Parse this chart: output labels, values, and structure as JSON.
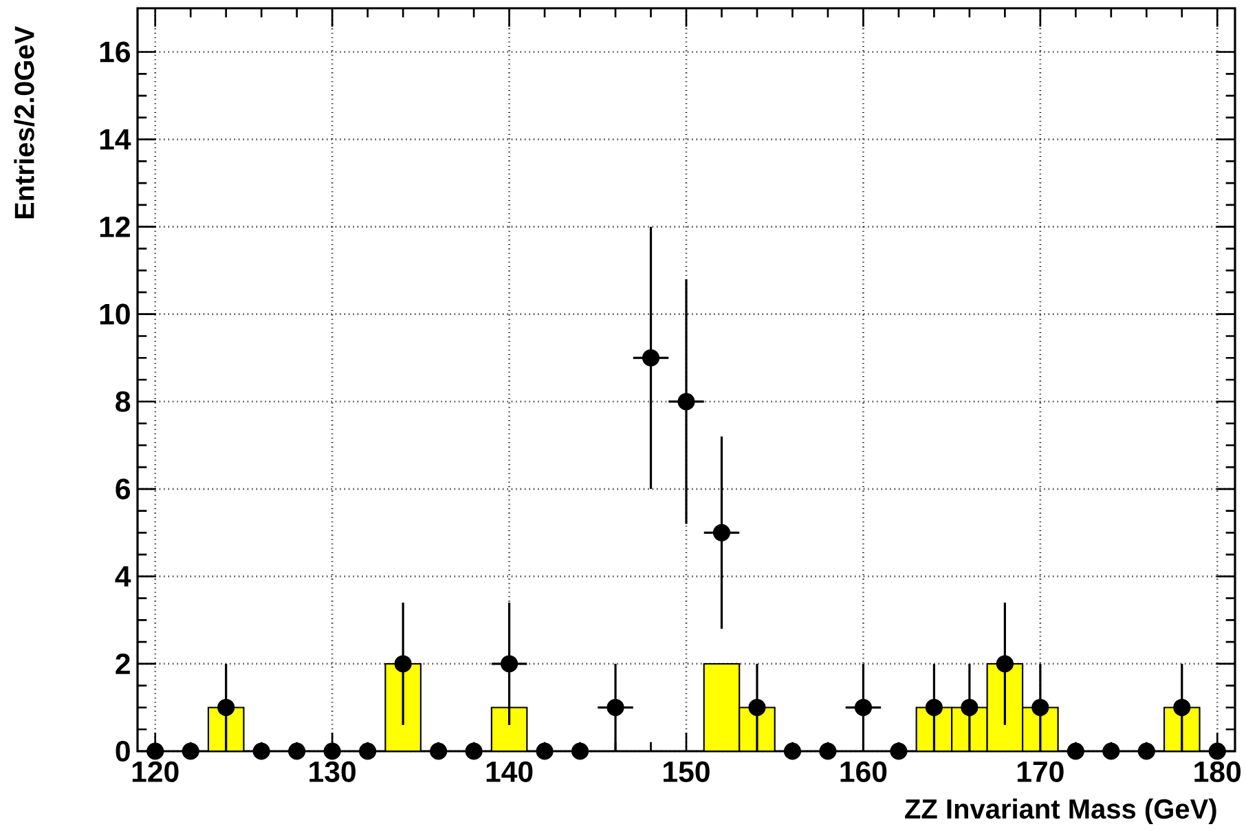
{
  "chart_data": {
    "type": "histogram",
    "xlabel": "ZZ Invariant Mass (GeV)",
    "ylabel": "Entries/2.0GeV",
    "xlim": [
      119,
      181
    ],
    "ylim": [
      0,
      17
    ],
    "xticks": [
      120,
      130,
      140,
      150,
      160,
      170,
      180
    ],
    "yticks": [
      0,
      2,
      4,
      6,
      8,
      10,
      12,
      14,
      16
    ],
    "grid": true,
    "series": [
      {
        "color": "#ffff00",
        "bins": [
          119,
          121,
          123,
          125,
          127,
          129,
          131,
          133,
          135,
          137,
          139,
          141,
          143,
          145,
          147,
          149,
          151,
          153,
          155,
          157,
          159,
          161,
          163,
          165,
          167,
          169,
          171,
          173,
          175,
          177,
          179,
          181
        ],
        "values": [
          0,
          0,
          1,
          0,
          0,
          0,
          0,
          2,
          0,
          0,
          1,
          0,
          0,
          0,
          0,
          0,
          2,
          1,
          0,
          0,
          0,
          0,
          1,
          1,
          2,
          1,
          0,
          0,
          0,
          1,
          0
        ]
      },
      {
        "type": "scatter",
        "color": "#000000",
        "x": [
          120,
          122,
          124,
          126,
          128,
          130,
          132,
          134,
          136,
          138,
          140,
          142,
          144,
          146,
          148,
          150,
          152,
          154,
          156,
          158,
          160,
          162,
          164,
          166,
          168,
          170,
          172,
          174,
          176,
          178,
          180
        ],
        "values": [
          0,
          0,
          1,
          0,
          0,
          0,
          0,
          2,
          0,
          0,
          2,
          0,
          0,
          1,
          9,
          8,
          5,
          1,
          0,
          0,
          1,
          0,
          1,
          1,
          2,
          1,
          0,
          0,
          0,
          1,
          0
        ],
        "errors": [
          null,
          null,
          1,
          null,
          null,
          null,
          null,
          1.4,
          null,
          null,
          1.4,
          null,
          null,
          1,
          3,
          2.8,
          2.2,
          1,
          null,
          null,
          1,
          null,
          1,
          1,
          1.4,
          1,
          null,
          null,
          null,
          1,
          null
        ],
        "xerrors": [
          null,
          null,
          null,
          null,
          null,
          null,
          null,
          null,
          null,
          null,
          1,
          null,
          null,
          1,
          1,
          1,
          1,
          null,
          null,
          null,
          1,
          null,
          null,
          null,
          null,
          null,
          null,
          null,
          null,
          null,
          null
        ]
      }
    ]
  }
}
